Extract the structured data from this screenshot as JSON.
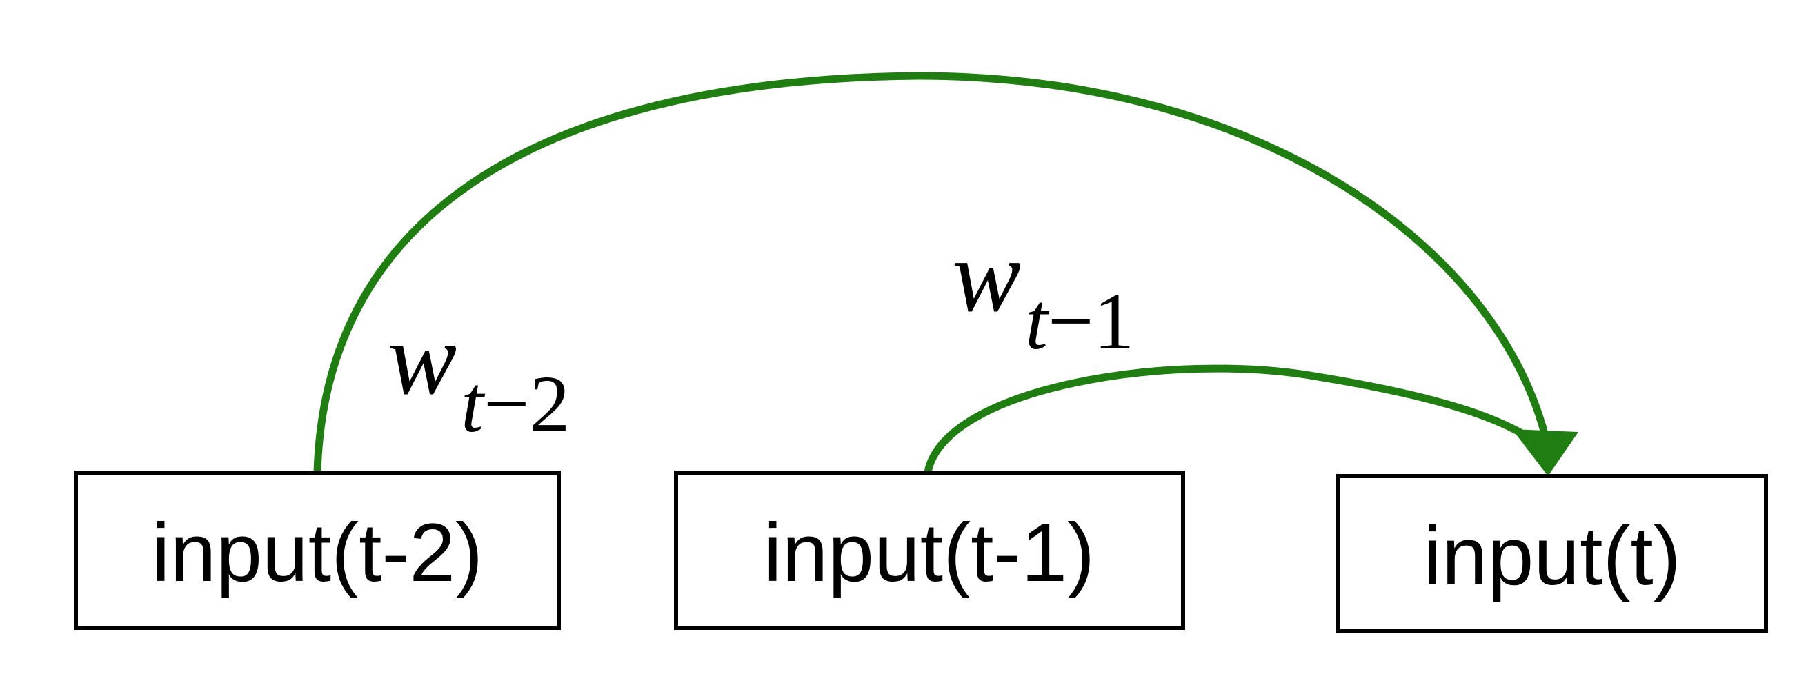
{
  "nodes": [
    {
      "id": "t-2",
      "label": "input(t-2)"
    },
    {
      "id": "t-1",
      "label": "input(t-1)"
    },
    {
      "id": "t",
      "label": "input(t)"
    }
  ],
  "edges": [
    {
      "from": "t-2",
      "to": "t",
      "weight": {
        "base": "w",
        "sub_var": "t",
        "sub_rest": "−2"
      }
    },
    {
      "from": "t-1",
      "to": "t",
      "weight": {
        "base": "w",
        "sub_var": "t",
        "sub_rest": "−1"
      }
    }
  ],
  "colors": {
    "edge": "#1f7d12",
    "node_border": "#000000",
    "text": "#000000",
    "background": "#ffffff"
  }
}
